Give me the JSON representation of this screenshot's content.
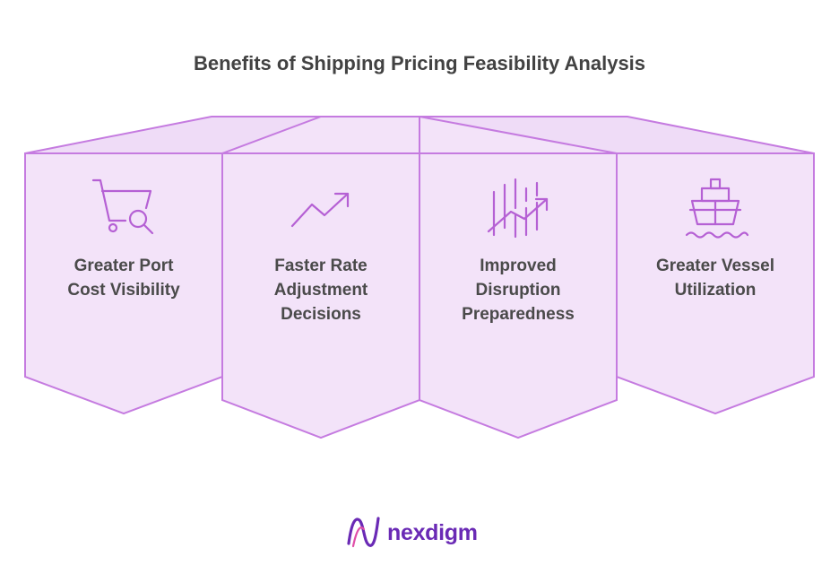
{
  "title": "Benefits of Shipping Pricing Feasibility Analysis",
  "cards": [
    {
      "icon": "cart-search-icon",
      "line1": "Greater Port",
      "line2": "Cost Visibility",
      "line3": ""
    },
    {
      "icon": "trend-up-arrow-icon",
      "line1": "Faster Rate",
      "line2": "Adjustment",
      "line3": "Decisions"
    },
    {
      "icon": "chart-bars-arrow-icon",
      "line1": "Improved",
      "line2": "Disruption",
      "line3": "Preparedness"
    },
    {
      "icon": "ship-icon",
      "line1": "Greater Vessel",
      "line2": "Utilization",
      "line3": ""
    }
  ],
  "brand": {
    "name": "nexdigm",
    "icon": "nexdigm-logo-icon"
  },
  "colors": {
    "fill": "#f3e3f9",
    "stroke": "#c57be0",
    "icon": "#b560d4",
    "brand": "#6a2ab5",
    "title": "#424242"
  }
}
